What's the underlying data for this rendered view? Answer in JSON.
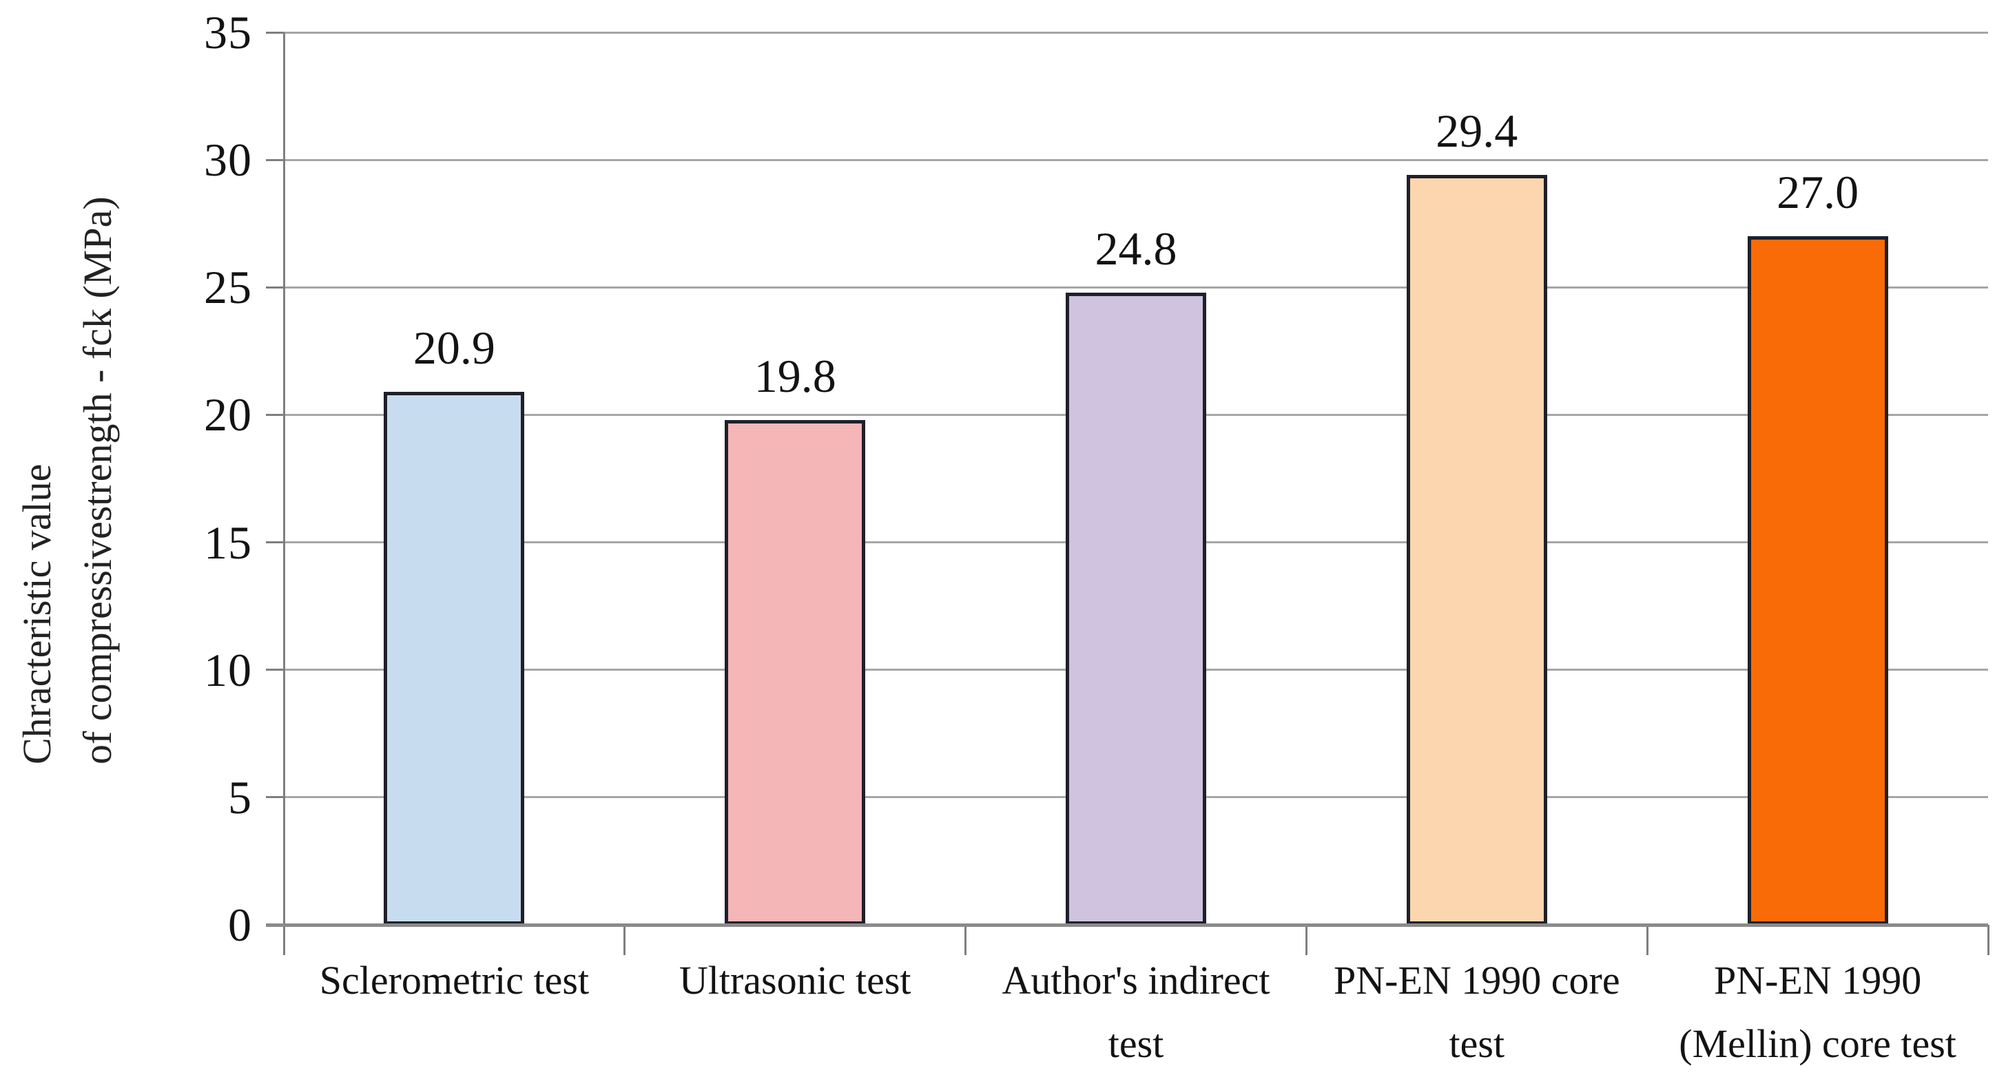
{
  "chart_data": {
    "type": "bar",
    "title": "",
    "categories": [
      "Sclerometric test",
      "Ultrasonic test",
      "Author's indirect test",
      "PN-EN 1990 core test",
      "PN-EN 1990 (Mellin) core test"
    ],
    "values": [
      20.9,
      19.8,
      24.8,
      29.4,
      27.0
    ],
    "bar_labels": [
      "20.9",
      "19.8",
      "24.8",
      "29.4",
      "27.0"
    ],
    "bar_colors": [
      "#C8DCEF",
      "#F4B6B6",
      "#CFC3DF",
      "#FBD6AF",
      "#F96B07"
    ],
    "bar_border_color": "#20202a",
    "ylabel_lines": [
      "Chracteristic value",
      "of compressivestrength - fck (MPa)"
    ],
    "yticks": [
      "0",
      "5",
      "10",
      "15",
      "20",
      "25",
      "30",
      "35"
    ],
    "ylim": [
      0,
      35
    ],
    "ytick_step": 5,
    "grid": true,
    "legend": "none",
    "gridline_color": "#a6a6a6",
    "axis_line_color": "#7f7f7f",
    "baseline_color": "#8a8a8a",
    "text_color": "#131313",
    "background_color": "#ffffff"
  }
}
